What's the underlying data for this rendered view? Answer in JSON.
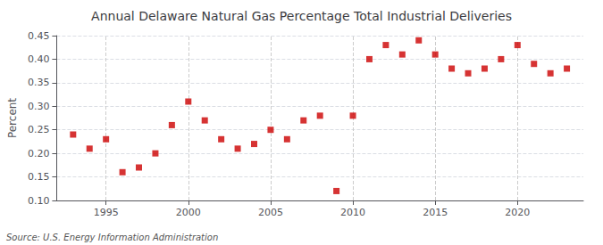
{
  "chart_data": {
    "type": "scatter",
    "title": "Annual Delaware Natural Gas Percentage Total Industrial Deliveries",
    "ylabel": "Percent",
    "source": "Source: U.S. Energy Information Administration",
    "x": [
      1993,
      1994,
      1995,
      1996,
      1997,
      1998,
      1999,
      2000,
      2001,
      2002,
      2003,
      2004,
      2005,
      2006,
      2007,
      2008,
      2009,
      2010,
      2011,
      2012,
      2013,
      2014,
      2015,
      2016,
      2017,
      2018,
      2019,
      2020,
      2021,
      2022,
      2023
    ],
    "values": [
      0.24,
      0.21,
      0.23,
      0.16,
      0.17,
      0.2,
      0.26,
      0.31,
      0.27,
      0.23,
      0.21,
      0.22,
      0.25,
      0.23,
      0.27,
      0.28,
      0.12,
      0.28,
      0.4,
      0.43,
      0.41,
      0.44,
      0.41,
      0.38,
      0.37,
      0.38,
      0.4,
      0.43,
      0.39,
      0.37,
      0.38
    ],
    "color": "#cc0000",
    "marker": "square",
    "xlim": [
      1992,
      2024
    ],
    "xticks": [
      1995,
      2000,
      2005,
      2010,
      2015,
      2020
    ],
    "ylim": [
      0.1,
      0.45
    ],
    "yticks": [
      {
        "value": 0.1,
        "label": "0.10"
      },
      {
        "value": 0.15,
        "label": "0.15"
      },
      {
        "value": 0.2,
        "label": "0.20"
      },
      {
        "value": 0.25,
        "label": "0.25"
      },
      {
        "value": 0.3,
        "label": "0.30"
      },
      {
        "value": 0.35,
        "label": "0.35"
      },
      {
        "value": 0.4,
        "label": "0.40"
      },
      {
        "value": 0.45,
        "label": "0.45"
      }
    ],
    "grid": true
  }
}
